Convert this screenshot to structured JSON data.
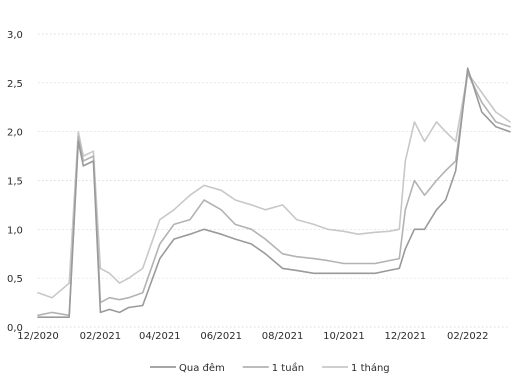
{
  "chart_data": {
    "type": "line",
    "title": "",
    "xlabel": "",
    "ylabel": "",
    "ylim": [
      0,
      3.0
    ],
    "y_ticks": [
      "0,0",
      "0,5",
      "1,0",
      "1,5",
      "2,0",
      "2,5",
      "3,0"
    ],
    "y_tick_values": [
      0,
      0.5,
      1.0,
      1.5,
      2.0,
      2.5,
      3.0
    ],
    "xlim": [
      "2020-12-01",
      "2022-03-15"
    ],
    "x_ticks": [
      "12/2020",
      "02/2021",
      "04/2021",
      "06/2021",
      "08/2021",
      "10/2021",
      "12/2021",
      "02/2022"
    ],
    "x_tick_dates": [
      "2020-12-01",
      "2021-02-01",
      "2021-04-01",
      "2021-06-01",
      "2021-08-01",
      "2021-10-01",
      "2021-12-01",
      "2022-02-01"
    ],
    "grid": "horizontal dotted",
    "legend_position": "bottom",
    "x": [
      "2020-12-01",
      "2020-12-15",
      "2021-01-01",
      "2021-01-10",
      "2021-01-15",
      "2021-01-25",
      "2021-02-01",
      "2021-02-10",
      "2021-02-20",
      "2021-03-01",
      "2021-03-15",
      "2021-04-01",
      "2021-04-15",
      "2021-05-01",
      "2021-05-15",
      "2021-06-01",
      "2021-06-15",
      "2021-07-01",
      "2021-07-15",
      "2021-08-01",
      "2021-08-15",
      "2021-09-01",
      "2021-09-15",
      "2021-10-01",
      "2021-10-15",
      "2021-11-01",
      "2021-11-15",
      "2021-11-25",
      "2021-12-01",
      "2021-12-10",
      "2021-12-20",
      "2022-01-01",
      "2022-01-10",
      "2022-01-20",
      "2022-02-01",
      "2022-02-15",
      "2022-03-01",
      "2022-03-15"
    ],
    "series": [
      {
        "name": "Qua đêm",
        "color": "#9a9a9a",
        "values": [
          0.1,
          0.1,
          0.1,
          1.9,
          1.65,
          1.7,
          0.15,
          0.18,
          0.15,
          0.2,
          0.22,
          0.7,
          0.9,
          0.95,
          1.0,
          0.95,
          0.9,
          0.85,
          0.75,
          0.6,
          0.58,
          0.55,
          0.55,
          0.55,
          0.55,
          0.55,
          0.58,
          0.6,
          0.8,
          1.0,
          1.0,
          1.2,
          1.3,
          1.6,
          2.65,
          2.2,
          2.05,
          2.0
        ]
      },
      {
        "name": "1 tuần",
        "color": "#b3b3b3",
        "values": [
          0.12,
          0.15,
          0.12,
          1.95,
          1.7,
          1.75,
          0.25,
          0.3,
          0.28,
          0.3,
          0.35,
          0.85,
          1.05,
          1.1,
          1.3,
          1.2,
          1.05,
          1.0,
          0.9,
          0.75,
          0.72,
          0.7,
          0.68,
          0.65,
          0.65,
          0.65,
          0.68,
          0.7,
          1.2,
          1.5,
          1.35,
          1.5,
          1.6,
          1.7,
          2.6,
          2.3,
          2.1,
          2.05
        ]
      },
      {
        "name": "1 tháng",
        "color": "#c8c8c8",
        "values": [
          0.35,
          0.3,
          0.45,
          2.0,
          1.75,
          1.8,
          0.6,
          0.55,
          0.45,
          0.5,
          0.6,
          1.1,
          1.2,
          1.35,
          1.45,
          1.4,
          1.3,
          1.25,
          1.2,
          1.25,
          1.1,
          1.05,
          1.0,
          0.98,
          0.95,
          0.97,
          0.98,
          1.0,
          1.7,
          2.1,
          1.9,
          2.1,
          2.0,
          1.9,
          2.6,
          2.4,
          2.2,
          2.1
        ]
      }
    ]
  }
}
